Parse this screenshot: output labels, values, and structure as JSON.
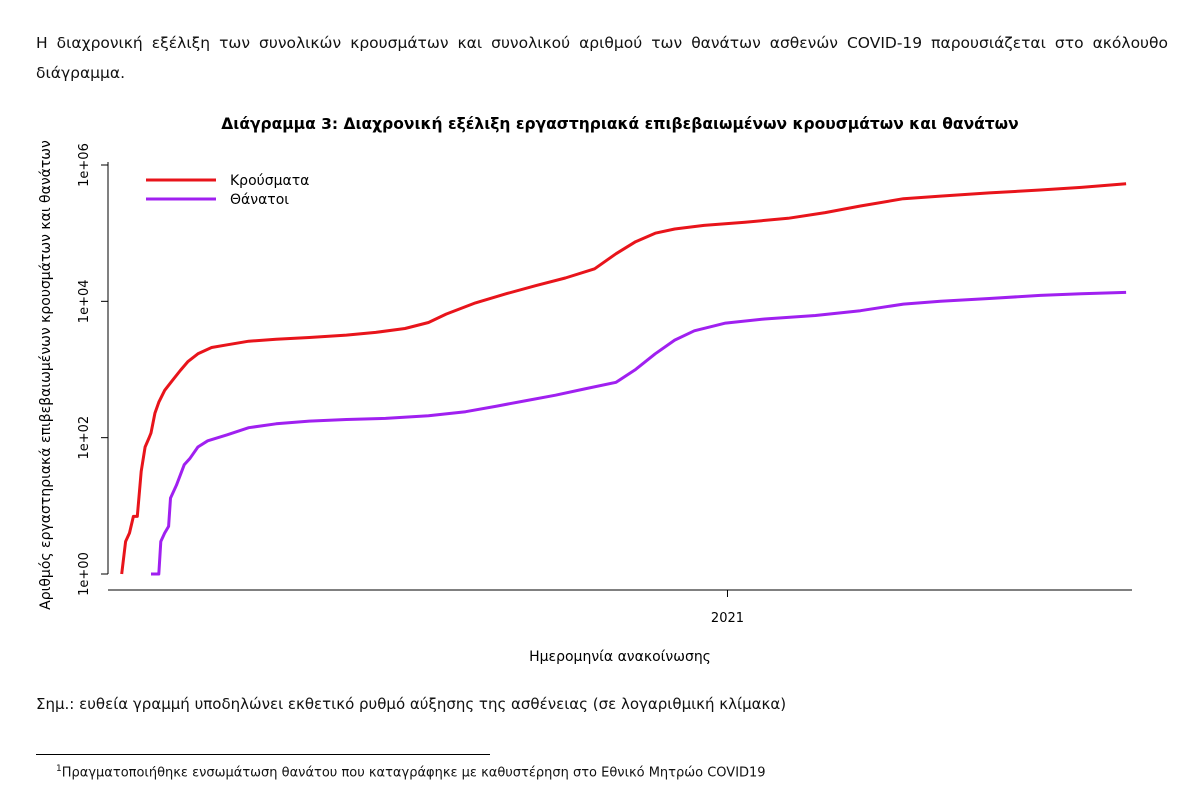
{
  "intro": "Η διαχρονική εξέλιξη των συνολικών κρουσμάτων και συνολικού αριθμού των θανάτων ασθενών COVID-19 παρουσιάζεται στο ακόλουθο διάγραμμα.",
  "chart_data": {
    "type": "line",
    "title": "Διάγραμμα 3: Διαχρονική εξέλιξη εργαστηριακά επιβεβαιωμένων κρουσμάτων και θανάτων",
    "xlabel": "Ημερομηνία ανακοίνωσης",
    "ylabel": "Αριθμός εργαστηριακά επιβεβαιωμένων κρουσμάτων και θανάτων",
    "y_scale": "log",
    "ylim": [
      1,
      1000000
    ],
    "y_ticks": [
      {
        "value": 1,
        "label": "1e+00"
      },
      {
        "value": 100,
        "label": "1e+02"
      },
      {
        "value": 10000,
        "label": "1e+04"
      },
      {
        "value": 1000000,
        "label": "1e+06"
      }
    ],
    "xlim": [
      "2020-02-19",
      "2021-07-27"
    ],
    "x_ticks": [
      {
        "value": "2021-01-01",
        "label": "2021"
      }
    ],
    "grid": false,
    "legend": "top-left",
    "series": [
      {
        "name": "Κρούσματα",
        "color": "#e8141b",
        "points": [
          [
            "2020-02-26",
            1
          ],
          [
            "2020-02-28",
            3
          ],
          [
            "2020-03-01",
            4
          ],
          [
            "2020-03-03",
            7
          ],
          [
            "2020-03-05",
            7
          ],
          [
            "2020-03-07",
            32
          ],
          [
            "2020-03-09",
            73
          ],
          [
            "2020-03-11",
            99
          ],
          [
            "2020-03-12",
            117
          ],
          [
            "2020-03-14",
            228
          ],
          [
            "2020-03-16",
            331
          ],
          [
            "2020-03-19",
            495
          ],
          [
            "2020-03-23",
            695
          ],
          [
            "2020-03-27",
            966
          ],
          [
            "2020-03-31",
            1314
          ],
          [
            "2020-04-05",
            1700
          ],
          [
            "2020-04-12",
            2100
          ],
          [
            "2020-04-20",
            2300
          ],
          [
            "2020-05-01",
            2600
          ],
          [
            "2020-05-15",
            2770
          ],
          [
            "2020-06-01",
            2950
          ],
          [
            "2020-06-20",
            3200
          ],
          [
            "2020-07-05",
            3500
          ],
          [
            "2020-07-20",
            4000
          ],
          [
            "2020-08-01",
            4900
          ],
          [
            "2020-08-10",
            6500
          ],
          [
            "2020-08-25",
            9500
          ],
          [
            "2020-09-10",
            13000
          ],
          [
            "2020-09-25",
            17000
          ],
          [
            "2020-10-10",
            22000
          ],
          [
            "2020-10-25",
            30000
          ],
          [
            "2020-11-05",
            50000
          ],
          [
            "2020-11-15",
            75000
          ],
          [
            "2020-11-25",
            100000
          ],
          [
            "2020-12-05",
            115000
          ],
          [
            "2020-12-20",
            130000
          ],
          [
            "2021-01-10",
            145000
          ],
          [
            "2021-02-01",
            165000
          ],
          [
            "2021-02-20",
            200000
          ],
          [
            "2021-03-10",
            250000
          ],
          [
            "2021-04-01",
            320000
          ],
          [
            "2021-04-20",
            350000
          ],
          [
            "2021-05-15",
            390000
          ],
          [
            "2021-06-10",
            430000
          ],
          [
            "2021-07-01",
            470000
          ],
          [
            "2021-07-24",
            530000
          ]
        ]
      },
      {
        "name": "Θάνατοι",
        "color": "#a020f0",
        "points": [
          [
            "2020-03-12",
            1
          ],
          [
            "2020-03-16",
            1
          ],
          [
            "2020-03-17",
            3
          ],
          [
            "2020-03-19",
            4
          ],
          [
            "2020-03-21",
            5
          ],
          [
            "2020-03-22",
            13
          ],
          [
            "2020-03-25",
            20
          ],
          [
            "2020-03-29",
            40
          ],
          [
            "2020-04-01",
            50
          ],
          [
            "2020-04-05",
            73
          ],
          [
            "2020-04-10",
            90
          ],
          [
            "2020-04-20",
            110
          ],
          [
            "2020-05-01",
            140
          ],
          [
            "2020-05-15",
            160
          ],
          [
            "2020-06-01",
            175
          ],
          [
            "2020-06-20",
            185
          ],
          [
            "2020-07-10",
            192
          ],
          [
            "2020-08-01",
            210
          ],
          [
            "2020-08-20",
            240
          ],
          [
            "2020-09-05",
            290
          ],
          [
            "2020-09-20",
            350
          ],
          [
            "2020-10-05",
            420
          ],
          [
            "2020-10-20",
            520
          ],
          [
            "2020-11-05",
            650
          ],
          [
            "2020-11-15",
            1000
          ],
          [
            "2020-11-25",
            1700
          ],
          [
            "2020-12-05",
            2700
          ],
          [
            "2020-12-15",
            3700
          ],
          [
            "2020-12-31",
            4800
          ],
          [
            "2021-01-20",
            5500
          ],
          [
            "2021-02-15",
            6200
          ],
          [
            "2021-03-10",
            7300
          ],
          [
            "2021-04-01",
            9100
          ],
          [
            "2021-04-20",
            10000
          ],
          [
            "2021-05-15",
            11000
          ],
          [
            "2021-06-10",
            12200
          ],
          [
            "2021-07-01",
            12900
          ],
          [
            "2021-07-24",
            13500
          ]
        ]
      }
    ]
  },
  "note": "Σημ.: ευθεία γραμμή υποδηλώνει εκθετικό ρυθμό αύξησης της ασθένειας (σε λογαριθμική κλίμακα)",
  "footnote": {
    "marker": "1",
    "text": "Πραγματοποιήθηκε ενσωμάτωση θανάτου που καταγράφηκε με καθυστέρηση στο Εθνικό Μητρώο COVID19"
  }
}
